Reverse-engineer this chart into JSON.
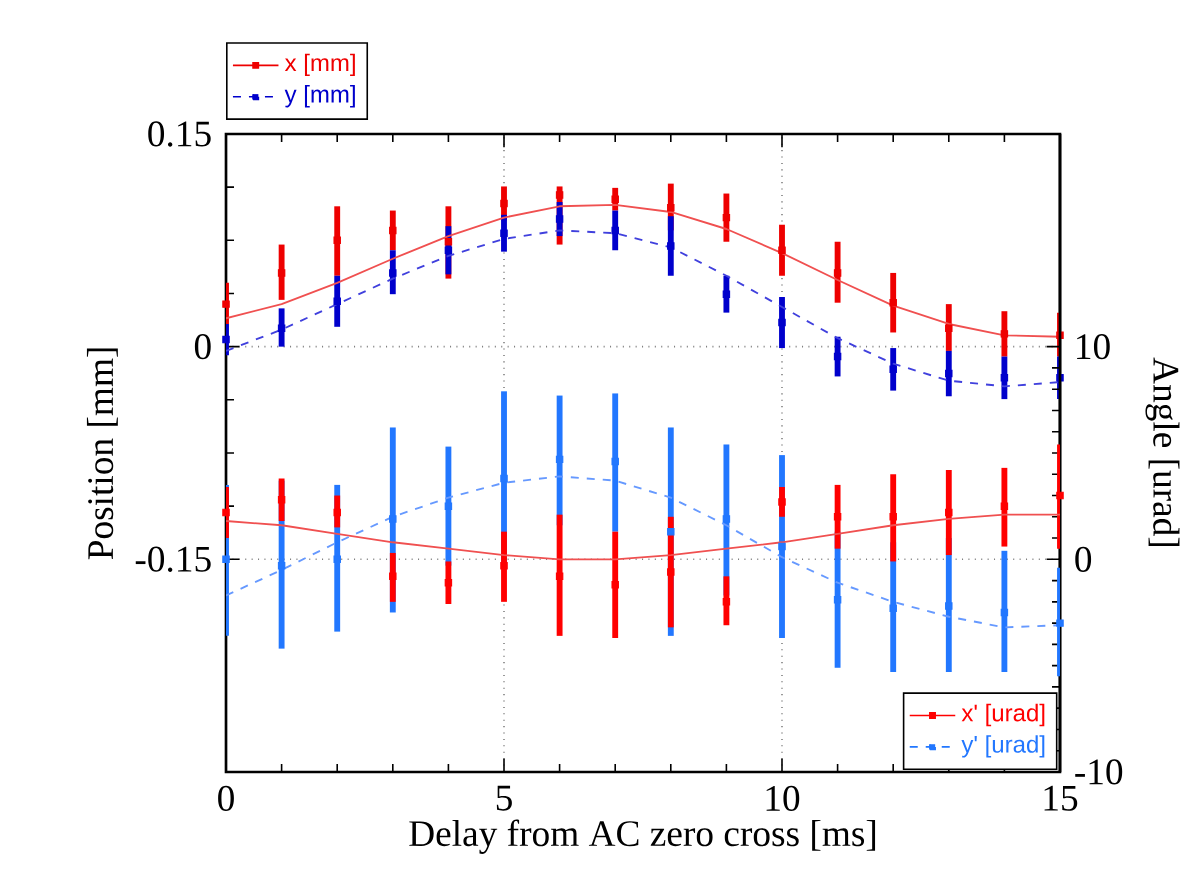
{
  "chart_data": {
    "type": "scatter",
    "xlabel": "Delay from AC zero cross [ms]",
    "ylabel": "Position [mm]",
    "y2label": "Angle [urad]",
    "x": [
      0,
      1,
      2,
      3,
      4,
      5,
      6,
      7,
      8,
      9,
      10,
      11,
      12,
      13,
      14,
      15
    ],
    "xlim": [
      0,
      15
    ],
    "xticks": [
      0,
      5,
      10,
      15
    ],
    "ylim": [
      -0.3,
      0.15
    ],
    "yticks": [
      -0.15,
      0,
      0.15
    ],
    "y2lim": [
      -10,
      20
    ],
    "y2ticks": [
      -10,
      0,
      10
    ],
    "grid": true,
    "legend": "top left",
    "series": [
      {
        "name": "x [mm]",
        "marker": "square",
        "color": "#ee0000",
        "values": [
          0.03,
          0.052,
          0.075,
          0.082,
          0.074,
          0.101,
          0.107,
          0.104,
          0.098,
          0.091,
          0.068,
          0.052,
          0.031,
          0.013,
          0.009,
          0.008
        ],
        "errors": [
          [
            0.016,
            0.045
          ],
          [
            0.033,
            0.072
          ],
          [
            0.05,
            0.099
          ],
          [
            0.068,
            0.096
          ],
          [
            0.048,
            0.099
          ],
          [
            0.089,
            0.113
          ],
          [
            0.072,
            0.113
          ],
          [
            0.096,
            0.112
          ],
          [
            0.082,
            0.115
          ],
          [
            0.074,
            0.108
          ],
          [
            0.05,
            0.086
          ],
          [
            0.031,
            0.074
          ],
          [
            0.01,
            0.052
          ],
          [
            -0.003,
            0.03
          ],
          [
            -0.007,
            0.025
          ],
          [
            -0.007,
            0.024
          ]
        ]
      },
      {
        "name": "y [mm]",
        "marker": "square",
        "line_style": "dashed",
        "color": "#0000cc",
        "values": [
          0.005,
          0.013,
          0.032,
          0.052,
          0.068,
          0.08,
          0.09,
          0.082,
          0.071,
          0.037,
          0.017,
          -0.007,
          -0.016,
          -0.019,
          -0.022,
          -0.022
        ],
        "errors": [
          [
            -0.006,
            0.016
          ],
          [
            0,
            0.027
          ],
          [
            0.014,
            0.05
          ],
          [
            0.037,
            0.068
          ],
          [
            0.051,
            0.085
          ],
          [
            0.067,
            0.093
          ],
          [
            0.078,
            0.102
          ],
          [
            0.068,
            0.096
          ],
          [
            0.05,
            0.092
          ],
          [
            0.024,
            0.05
          ],
          [
            -0.001,
            0.035
          ],
          [
            -0.021,
            0.007
          ],
          [
            -0.031,
            -0.001
          ],
          [
            -0.035,
            -0.003
          ],
          [
            -0.037,
            -0.007
          ],
          [
            -0.037,
            -0.007
          ]
        ]
      },
      {
        "type": "line",
        "marker": "none",
        "line_style": "solid",
        "color": "#f05050",
        "values": [
          0.02,
          0.03,
          0.045,
          0.062,
          0.078,
          0.091,
          0.099,
          0.1,
          0.095,
          0.083,
          0.066,
          0.047,
          0.029,
          0.016,
          0.008,
          0.007
        ]
      },
      {
        "type": "line",
        "marker": "none",
        "line_style": "dashed",
        "color": "#4040dd",
        "values": [
          -0.003,
          0.012,
          0.03,
          0.048,
          0.064,
          0.076,
          0.082,
          0.08,
          0.07,
          0.05,
          0.028,
          0.006,
          -0.012,
          -0.024,
          -0.028,
          -0.025
        ]
      },
      {
        "name": "y' [urad]",
        "marker": "square",
        "line_style": "dashed",
        "axis": "y2",
        "color": "#2277ff",
        "values": [
          0,
          -0.3,
          0,
          1.9,
          2.5,
          3.8,
          4.7,
          4.6,
          1.3,
          1.9,
          0.6,
          -1.9,
          -2.3,
          -2.2,
          -2.5,
          -3.0
        ],
        "errors": [
          [
            -3.6,
            3.5
          ],
          [
            -4.2,
            3.7
          ],
          [
            -3.4,
            3.5
          ],
          [
            -2.5,
            6.2
          ],
          [
            -0.3,
            5.3
          ],
          [
            -0.3,
            7.9
          ],
          [
            1.6,
            7.7
          ],
          [
            1.3,
            7.8
          ],
          [
            -3.6,
            6.2
          ],
          [
            -1.7,
            5.4
          ],
          [
            -3.7,
            4.9
          ],
          [
            -5.1,
            1.3
          ],
          [
            -5.3,
            0.8
          ],
          [
            -5.3,
            1.0
          ],
          [
            -5.3,
            0.4
          ],
          [
            -5.5,
            -0.4
          ]
        ]
      },
      {
        "name": "x' [urad]",
        "marker": "square",
        "axis": "y2",
        "color": "#ff0000",
        "values": [
          2.2,
          2.8,
          2.2,
          -0.8,
          -1.1,
          -0.3,
          -0.8,
          -1.2,
          -0.6,
          -2.0,
          2.7,
          2.0,
          2.0,
          2.2,
          2.5,
          3.0
        ],
        "errors": [
          [
            1.0,
            3.4
          ],
          [
            1.8,
            3.8
          ],
          [
            1.5,
            3.0
          ],
          [
            -2.0,
            0.3
          ],
          [
            -2.1,
            -0.1
          ],
          [
            -2.0,
            1.3
          ],
          [
            -3.6,
            2.1
          ],
          [
            -3.7,
            1.3
          ],
          [
            -3.2,
            2.0
          ],
          [
            -3.1,
            -0.8
          ],
          [
            2.0,
            3.4
          ],
          [
            0.5,
            3.5
          ],
          [
            -0.1,
            4.0
          ],
          [
            0.2,
            4.2
          ],
          [
            0.6,
            4.3
          ],
          [
            0.5,
            5.4
          ]
        ]
      },
      {
        "type": "line",
        "marker": "none",
        "line_style": "solid",
        "axis": "y2",
        "color": "#f05050",
        "values": [
          1.8,
          1.6,
          1.2,
          0.8,
          0.5,
          0.2,
          0.0,
          0.0,
          0.2,
          0.5,
          0.8,
          1.2,
          1.6,
          1.9,
          2.1,
          2.1
        ]
      },
      {
        "type": "line",
        "marker": "none",
        "line_style": "dashed",
        "axis": "y2",
        "color": "#6699ff",
        "values": [
          -1.7,
          -0.5,
          0.8,
          2.0,
          2.9,
          3.6,
          3.9,
          3.7,
          2.9,
          1.6,
          0.1,
          -1.1,
          -2.0,
          -2.7,
          -3.2,
          -3.1
        ]
      }
    ]
  }
}
